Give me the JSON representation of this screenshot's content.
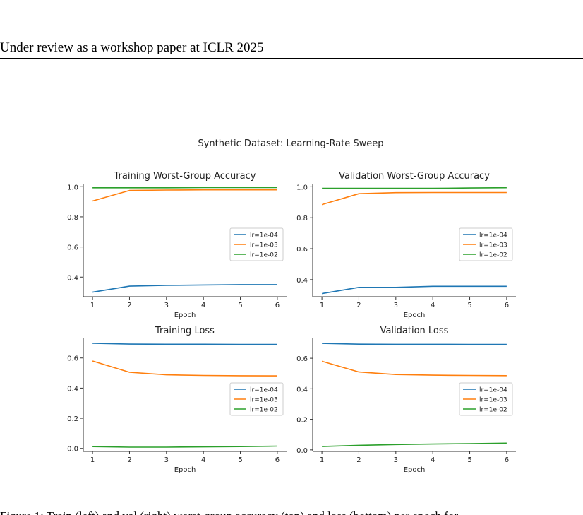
{
  "header": {
    "text": "Under review as a workshop paper at ICLR 2025"
  },
  "figure": {
    "suptitle": "Synthetic Dataset: Learning-Rate Sweep"
  },
  "caption": {
    "text": "Figure 1: Train (left) and val (right) worst-group accuracy (top) and loss (bottom) per epoch for"
  },
  "colors": {
    "lr=1e-04": "#1f77b4",
    "lr=1e-03": "#ff7f0e",
    "lr=1e-02": "#2ca02c"
  },
  "chart_data": [
    {
      "type": "line",
      "title": "Training Worst-Group Accuracy",
      "xlabel": "Epoch",
      "ylabel": "",
      "x": [
        1,
        2,
        3,
        4,
        5,
        6
      ],
      "xticks": [
        "1",
        "2",
        "3",
        "4",
        "5",
        "6"
      ],
      "yticks": [
        "0.4",
        "0.6",
        "0.8",
        "1.0"
      ],
      "ytick_values": [
        0.4,
        0.6,
        0.8,
        1.0
      ],
      "ylim": [
        0.27,
        1.02
      ],
      "legend": "center-right",
      "series": [
        {
          "name": "lr=1e-04",
          "values": [
            0.3,
            0.34,
            0.345,
            0.348,
            0.35,
            0.35
          ]
        },
        {
          "name": "lr=1e-03",
          "values": [
            0.905,
            0.975,
            0.978,
            0.979,
            0.979,
            0.979
          ]
        },
        {
          "name": "lr=1e-02",
          "values": [
            0.993,
            0.993,
            0.993,
            0.994,
            0.994,
            0.994
          ]
        }
      ]
    },
    {
      "type": "line",
      "title": "Validation Worst-Group Accuracy",
      "xlabel": "Epoch",
      "ylabel": "",
      "x": [
        1,
        2,
        3,
        4,
        5,
        6
      ],
      "xticks": [
        "1",
        "2",
        "3",
        "4",
        "5",
        "6"
      ],
      "yticks": [
        "0.4",
        "0.6",
        "0.8",
        "1.0"
      ],
      "ytick_values": [
        0.4,
        0.6,
        0.8,
        1.0
      ],
      "ylim": [
        0.29,
        1.02
      ],
      "legend": "center-right",
      "series": [
        {
          "name": "lr=1e-04",
          "values": [
            0.31,
            0.35,
            0.35,
            0.357,
            0.357,
            0.357
          ]
        },
        {
          "name": "lr=1e-03",
          "values": [
            0.885,
            0.955,
            0.962,
            0.963,
            0.963,
            0.963
          ]
        },
        {
          "name": "lr=1e-02",
          "values": [
            0.99,
            0.99,
            0.99,
            0.99,
            0.992,
            0.994
          ]
        }
      ]
    },
    {
      "type": "line",
      "title": "Training Loss",
      "xlabel": "Epoch",
      "ylabel": "",
      "x": [
        1,
        2,
        3,
        4,
        5,
        6
      ],
      "xticks": [
        "1",
        "2",
        "3",
        "4",
        "5",
        "6"
      ],
      "yticks": [
        "0.0",
        "0.2",
        "0.4",
        "0.6"
      ],
      "ytick_values": [
        0.0,
        0.2,
        0.4,
        0.6
      ],
      "ylim": [
        -0.02,
        0.73
      ],
      "legend": "center-right",
      "series": [
        {
          "name": "lr=1e-04",
          "values": [
            0.697,
            0.692,
            0.691,
            0.691,
            0.69,
            0.69
          ]
        },
        {
          "name": "lr=1e-03",
          "values": [
            0.58,
            0.505,
            0.488,
            0.484,
            0.482,
            0.481
          ]
        },
        {
          "name": "lr=1e-02",
          "values": [
            0.012,
            0.008,
            0.008,
            0.01,
            0.012,
            0.015
          ]
        }
      ]
    },
    {
      "type": "line",
      "title": "Validation Loss",
      "xlabel": "Epoch",
      "ylabel": "",
      "x": [
        1,
        2,
        3,
        4,
        5,
        6
      ],
      "xticks": [
        "1",
        "2",
        "3",
        "4",
        "5",
        "6"
      ],
      "yticks": [
        "0.0",
        "0.2",
        "0.4",
        "0.6"
      ],
      "ytick_values": [
        0.0,
        0.2,
        0.4,
        0.6
      ],
      "ylim": [
        -0.01,
        0.73
      ],
      "legend": "center-right",
      "series": [
        {
          "name": "lr=1e-04",
          "values": [
            0.697,
            0.692,
            0.691,
            0.691,
            0.69,
            0.69
          ]
        },
        {
          "name": "lr=1e-03",
          "values": [
            0.58,
            0.51,
            0.493,
            0.489,
            0.487,
            0.486
          ]
        },
        {
          "name": "lr=1e-02",
          "values": [
            0.022,
            0.03,
            0.035,
            0.038,
            0.041,
            0.044
          ]
        }
      ]
    }
  ]
}
